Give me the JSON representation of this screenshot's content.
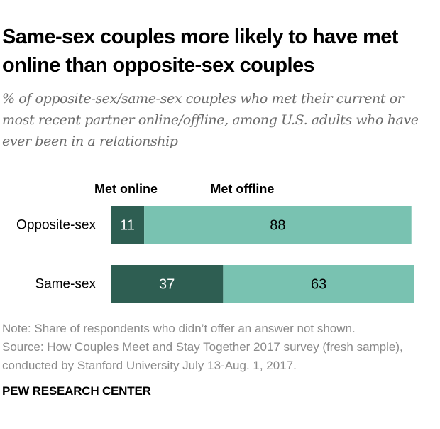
{
  "chart_data": {
    "type": "bar",
    "orientation": "horizontal",
    "stacked": true,
    "title": "Same-sex couples more likely to have met online than opposite-sex couples",
    "subtitle": "% of opposite-sex/same-sex couples who met their current or most recent partner online/offline, among U.S. adults who have ever been in a relationship",
    "categories": [
      "Opposite-sex",
      "Same-sex"
    ],
    "series": [
      {
        "name": "Met online",
        "values": [
          11,
          37
        ],
        "color": "#2e5e52",
        "label_color": "#ffffff"
      },
      {
        "name": "Met offline",
        "values": [
          88,
          63
        ],
        "color": "#79c2b1",
        "label_color": "#000000"
      }
    ],
    "xlim": [
      0,
      100
    ],
    "legend": "top",
    "grid": false
  },
  "footer": {
    "note": "Note: Share of respondents who didn’t offer an answer not shown.",
    "source": "Source: How Couples Meet and Stay Together 2017 survey (fresh sample), conducted by Stanford University July 13-Aug. 1, 2017.",
    "org": "PEW RESEARCH CENTER"
  }
}
